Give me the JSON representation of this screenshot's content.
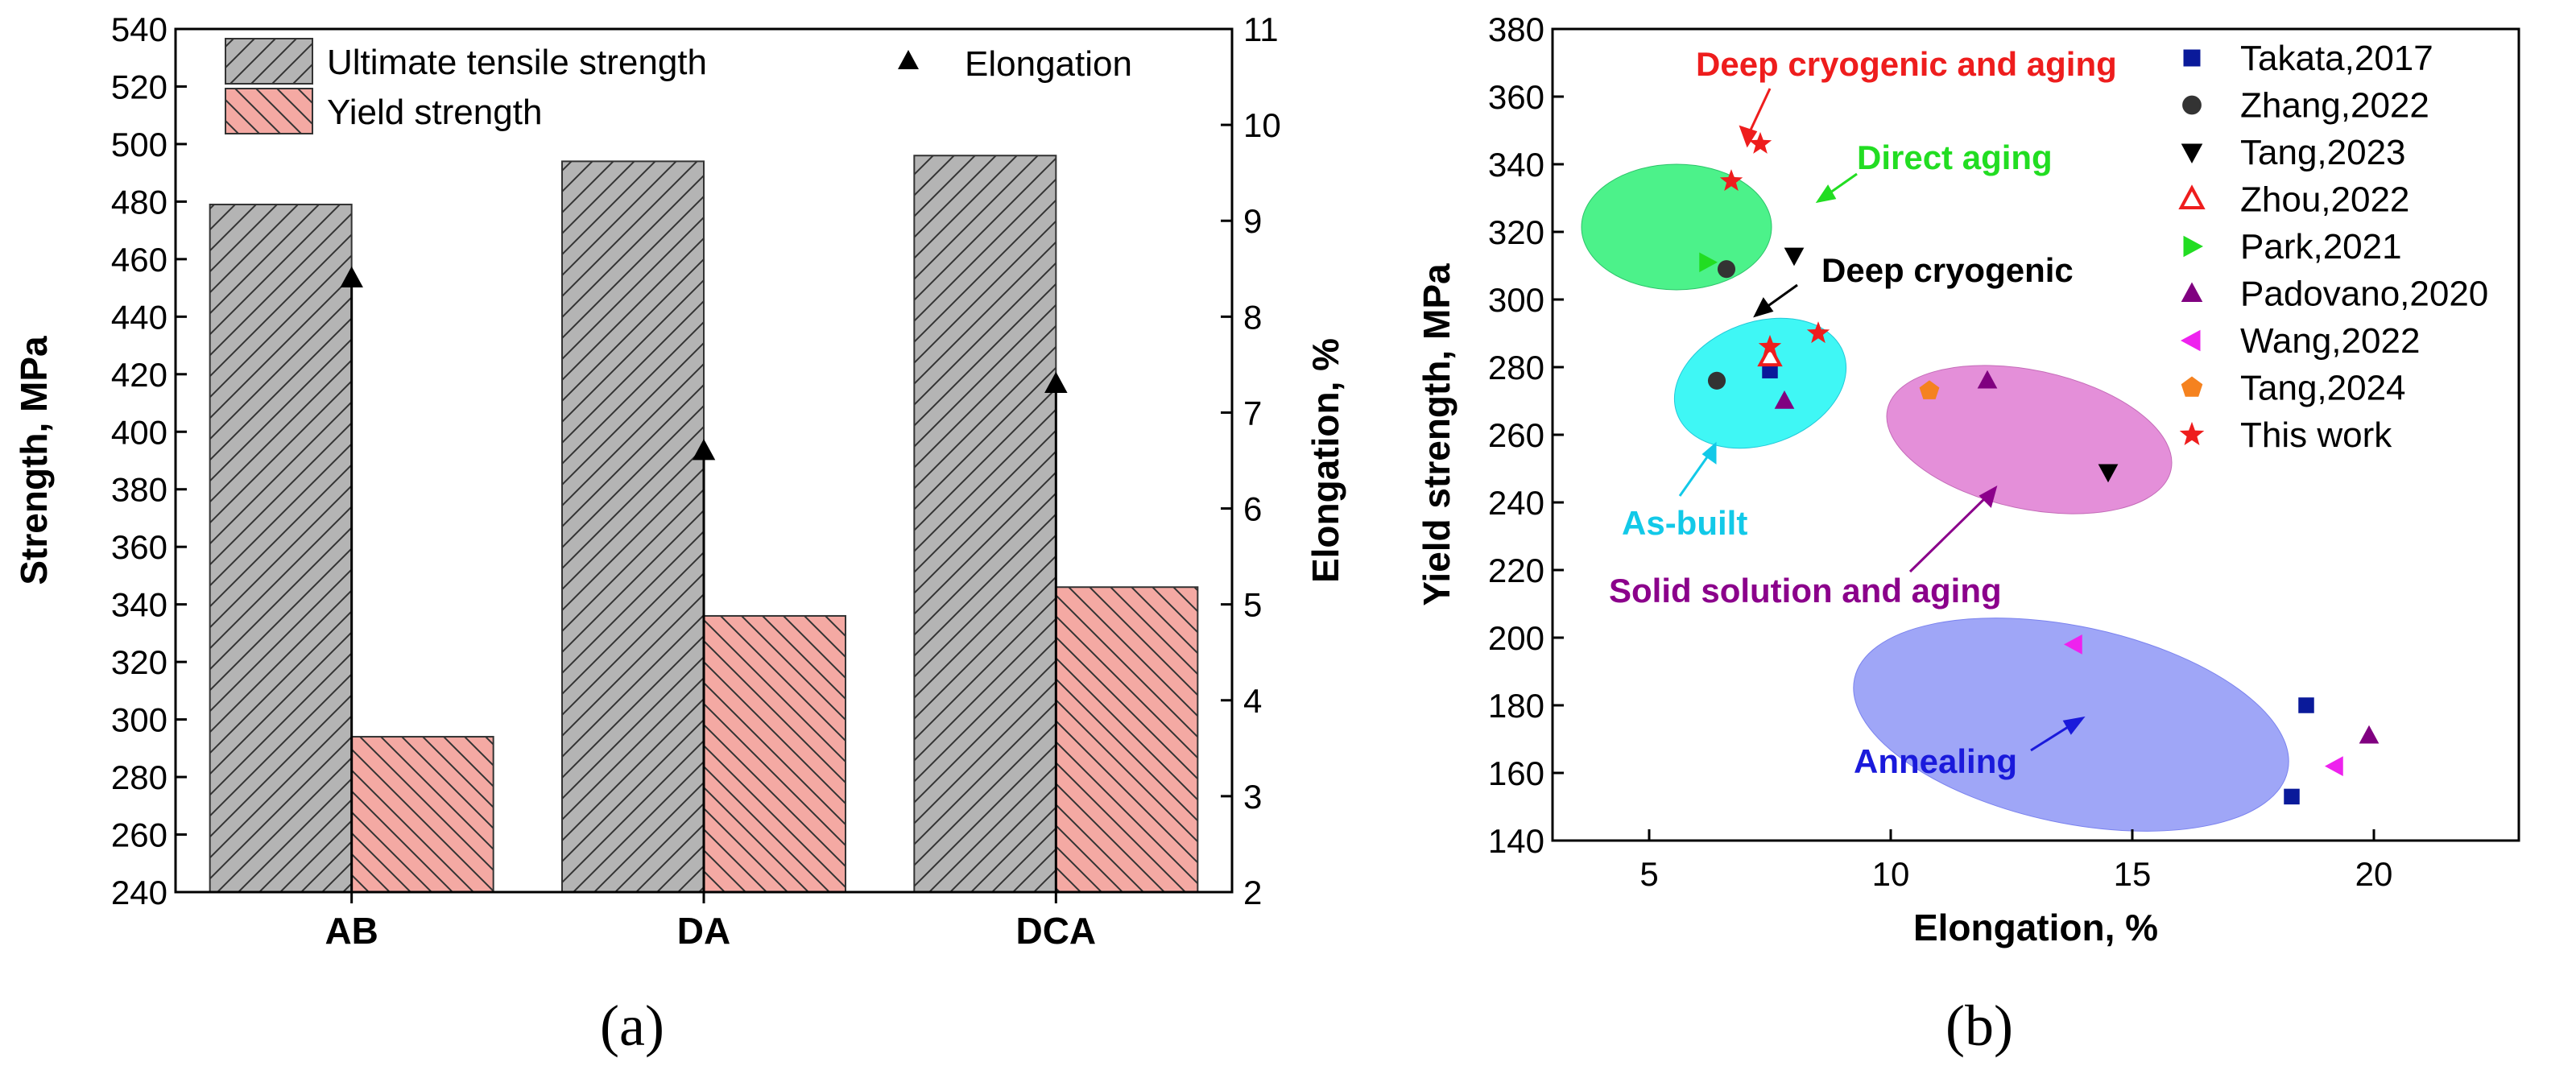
{
  "colors": {
    "uts_fill": "#b4b4b4",
    "yield_fill": "#f4a9a3",
    "annealing": "#9fa6f7",
    "solid_solution": "#e48fd9",
    "as_built": "#3ff7f5",
    "direct_aging": "#4cf28a",
    "deep_cryo_aging_text": "#ee1d1d",
    "direct_aging_text": "#22dd22",
    "as_built_text": "#12c9e8",
    "solid_solution_text": "#8b008b",
    "annealing_text": "#1a1adb"
  },
  "chart_data": [
    {
      "type": "bar",
      "panel_label": "(a)",
      "categories": [
        "AB",
        "DA",
        "DCA"
      ],
      "series": [
        {
          "name": "Ultimate tensile strength",
          "values": [
            479,
            494,
            496
          ],
          "axis": "left"
        },
        {
          "name": "Yield strength",
          "values": [
            294,
            336,
            346
          ],
          "axis": "left"
        },
        {
          "name": "Elongation",
          "values": [
            8.4,
            6.6,
            7.3
          ],
          "axis": "right",
          "marker": "triangle"
        }
      ],
      "ylabel": "Strength, MPa",
      "ylim": [
        240,
        540
      ],
      "yticks": [
        "240",
        "260",
        "280",
        "300",
        "320",
        "340",
        "360",
        "380",
        "400",
        "420",
        "440",
        "460",
        "480",
        "500",
        "520",
        "540"
      ],
      "y2label": "Elongation, %",
      "y2lim": [
        2,
        11
      ],
      "y2ticks": [
        "2",
        "3",
        "4",
        "5",
        "6",
        "7",
        "8",
        "9",
        "10",
        "11"
      ],
      "legend": [
        "Ultimate tensile strength",
        "Yield strength",
        "Elongation"
      ],
      "legend_position": "top"
    },
    {
      "type": "scatter",
      "panel_label": "(b)",
      "xlabel": "Elongation, %",
      "ylabel": "Yield strength, MPa",
      "xlim": [
        3,
        23
      ],
      "ylim": [
        140,
        380
      ],
      "xticks": [
        "5",
        "10",
        "15",
        "20"
      ],
      "yticks": [
        "140",
        "160",
        "180",
        "200",
        "220",
        "240",
        "260",
        "280",
        "300",
        "320",
        "340",
        "360",
        "380"
      ],
      "legend_position": "top-right",
      "series": [
        {
          "name": "Takata,2017",
          "marker": "square",
          "color": "#0a1a9a",
          "points": [
            [
              7.5,
              279
            ],
            [
              18.6,
              180
            ],
            [
              18.3,
              153
            ]
          ]
        },
        {
          "name": "Zhang,2022",
          "marker": "circle",
          "color": "#333333",
          "points": [
            [
              6.4,
              276
            ],
            [
              6.6,
              309
            ]
          ]
        },
        {
          "name": "Tang,2023",
          "marker": "triangle-down",
          "color": "#000000",
          "points": [
            [
              8.0,
              313
            ],
            [
              14.5,
              249
            ]
          ]
        },
        {
          "name": "Zhou,2022",
          "marker": "triangle-open",
          "color": "#ee1d1d",
          "points": [
            [
              7.5,
              283
            ]
          ]
        },
        {
          "name": "Park,2021",
          "marker": "triangle-right",
          "color": "#22dd22",
          "points": [
            [
              6.2,
              311
            ]
          ]
        },
        {
          "name": "Padovano,2020",
          "marker": "triangle-up",
          "color": "#800080",
          "points": [
            [
              7.8,
              270
            ],
            [
              12.0,
              276
            ],
            [
              19.9,
              171
            ]
          ]
        },
        {
          "name": "Wang,2022",
          "marker": "triangle-left",
          "color": "#ee22ee",
          "points": [
            [
              13.8,
              198
            ],
            [
              19.2,
              162
            ]
          ]
        },
        {
          "name": "Tang,2024",
          "marker": "pentagon",
          "color": "#f5821f",
          "points": [
            [
              10.8,
              273
            ]
          ]
        },
        {
          "name": "This work",
          "marker": "star",
          "color": "#ee1d1d",
          "points": [
            [
              7.3,
              346
            ],
            [
              8.5,
              290
            ],
            [
              7.5,
              286
            ],
            [
              6.7,
              335
            ]
          ]
        }
      ],
      "annotations": [
        "Deep cryogenic and aging",
        "Direct aging",
        "Deep cryogenic",
        "As-built",
        "Solid solution and aging",
        "Annealing"
      ]
    }
  ]
}
